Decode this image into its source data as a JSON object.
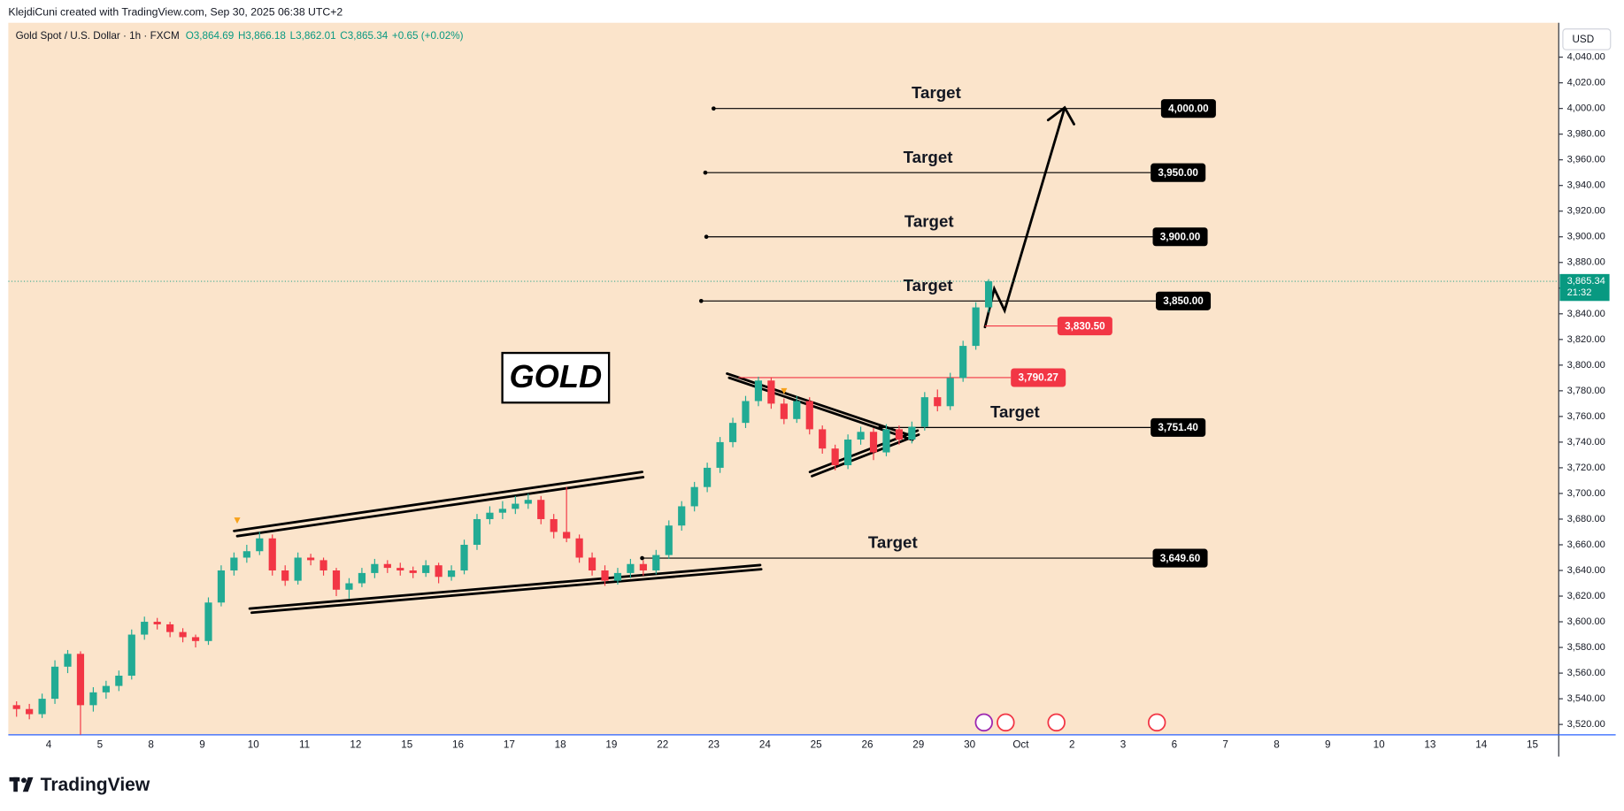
{
  "top_bar": "KlejdiCuni created with TradingView.com, Sep 30, 2025 06:38 UTC+2",
  "footer_brand": "TradingView",
  "chart_data": {
    "type": "candlestick",
    "symbol": "Gold Spot / U.S. Dollar · 1h · FXCM",
    "ohlc_text": [
      "O3,864.69",
      "H3,866.18",
      "L3,862.01",
      "C3,865.34",
      "+0.65 (+0.02%)"
    ],
    "currency": "USD",
    "title": "GOLD",
    "up_color": "#22ab94",
    "down_color": "#f23645",
    "categories": [
      "4",
      "5",
      "8",
      "9",
      "10",
      "11",
      "12",
      "15",
      "16",
      "17",
      "18",
      "19",
      "22",
      "23",
      "24",
      "25",
      "26",
      "29",
      "30",
      "Oct",
      "2",
      "3",
      "6",
      "7",
      "8",
      "9",
      "10",
      "13",
      "14",
      "15"
    ],
    "candles": [
      [
        3535,
        3538,
        3526,
        3532
      ],
      [
        3532,
        3536,
        3524,
        3528
      ],
      [
        3528,
        3544,
        3525,
        3540
      ],
      [
        3540,
        3570,
        3536,
        3565
      ],
      [
        3565,
        3578,
        3560,
        3575
      ],
      [
        3575,
        3577,
        3512,
        3535
      ],
      [
        3535,
        3549,
        3530,
        3545
      ],
      [
        3545,
        3554,
        3540,
        3550
      ],
      [
        3550,
        3562,
        3546,
        3558
      ],
      [
        3558,
        3594,
        3555,
        3590
      ],
      [
        3590,
        3604,
        3586,
        3600
      ],
      [
        3600,
        3603,
        3594,
        3598
      ],
      [
        3598,
        3600,
        3588,
        3592
      ],
      [
        3592,
        3595,
        3584,
        3588
      ],
      [
        3588,
        3590,
        3580,
        3585
      ],
      [
        3585,
        3619,
        3582,
        3615
      ],
      [
        3615,
        3644,
        3612,
        3640
      ],
      [
        3640,
        3654,
        3636,
        3650
      ],
      [
        3650,
        3660,
        3646,
        3655
      ],
      [
        3655,
        3670,
        3652,
        3665
      ],
      [
        3665,
        3668,
        3636,
        3640
      ],
      [
        3640,
        3644,
        3628,
        3632
      ],
      [
        3632,
        3654,
        3629,
        3650
      ],
      [
        3650,
        3653,
        3644,
        3648
      ],
      [
        3648,
        3650,
        3636,
        3640
      ],
      [
        3640,
        3642,
        3620,
        3625
      ],
      [
        3625,
        3634,
        3618,
        3630
      ],
      [
        3630,
        3642,
        3627,
        3638
      ],
      [
        3638,
        3649,
        3634,
        3645
      ],
      [
        3645,
        3648,
        3638,
        3642
      ],
      [
        3642,
        3646,
        3636,
        3640
      ],
      [
        3640,
        3643,
        3634,
        3638
      ],
      [
        3638,
        3648,
        3635,
        3644
      ],
      [
        3644,
        3646,
        3630,
        3635
      ],
      [
        3635,
        3644,
        3632,
        3640
      ],
      [
        3640,
        3664,
        3637,
        3660
      ],
      [
        3660,
        3684,
        3656,
        3680
      ],
      [
        3680,
        3690,
        3676,
        3685
      ],
      [
        3685,
        3694,
        3680,
        3688
      ],
      [
        3688,
        3698,
        3684,
        3692
      ],
      [
        3692,
        3700,
        3688,
        3695
      ],
      [
        3695,
        3698,
        3676,
        3680
      ],
      [
        3680,
        3684,
        3665,
        3670
      ],
      [
        3670,
        3705,
        3662,
        3665
      ],
      [
        3665,
        3668,
        3646,
        3650
      ],
      [
        3650,
        3654,
        3636,
        3640
      ],
      [
        3640,
        3644,
        3628,
        3632
      ],
      [
        3632,
        3642,
        3629,
        3638
      ],
      [
        3638,
        3649,
        3634,
        3645
      ],
      [
        3645,
        3648,
        3636,
        3640
      ],
      [
        3640,
        3656,
        3637,
        3652
      ],
      [
        3652,
        3679,
        3649,
        3675
      ],
      [
        3675,
        3694,
        3671,
        3690
      ],
      [
        3690,
        3709,
        3686,
        3705
      ],
      [
        3705,
        3724,
        3701,
        3720
      ],
      [
        3720,
        3744,
        3716,
        3740
      ],
      [
        3740,
        3759,
        3736,
        3755
      ],
      [
        3755,
        3776,
        3751,
        3772
      ],
      [
        3772,
        3791,
        3768,
        3788
      ],
      [
        3788,
        3790,
        3766,
        3770
      ],
      [
        3770,
        3774,
        3754,
        3758
      ],
      [
        3758,
        3776,
        3755,
        3772
      ],
      [
        3772,
        3775,
        3746,
        3750
      ],
      [
        3750,
        3753,
        3731,
        3735
      ],
      [
        3735,
        3738,
        3718,
        3722
      ],
      [
        3722,
        3746,
        3719,
        3742
      ],
      [
        3742,
        3752,
        3738,
        3748
      ],
      [
        3748,
        3751,
        3726,
        3732
      ],
      [
        3732,
        3754,
        3729,
        3750
      ],
      [
        3750,
        3753,
        3738,
        3742
      ],
      [
        3742,
        3756,
        3739,
        3752
      ],
      [
        3752,
        3779,
        3749,
        3775
      ],
      [
        3775,
        3781,
        3764,
        3768
      ],
      [
        3768,
        3794,
        3765,
        3790
      ],
      [
        3790,
        3819,
        3787,
        3815
      ],
      [
        3815,
        3849,
        3812,
        3845
      ],
      [
        3845,
        3867,
        3841,
        3865.34
      ]
    ],
    "ylim": [
      3511.9,
      4066.8
    ],
    "yticks": [
      {
        "value": 3520,
        "label": "3,520.00"
      },
      {
        "value": 3540,
        "label": "3,540.00"
      },
      {
        "value": 3560,
        "label": "3,560.00"
      },
      {
        "value": 3580,
        "label": "3,580.00"
      },
      {
        "value": 3600,
        "label": "3,600.00"
      },
      {
        "value": 3620,
        "label": "3,620.00"
      },
      {
        "value": 3640,
        "label": "3,640.00"
      },
      {
        "value": 3660,
        "label": "3,660.00"
      },
      {
        "value": 3680,
        "label": "3,680.00"
      },
      {
        "value": 3700,
        "label": "3,700.00"
      },
      {
        "value": 3720,
        "label": "3,720.00"
      },
      {
        "value": 3740,
        "label": "3,740.00"
      },
      {
        "value": 3760,
        "label": "3,760.00"
      },
      {
        "value": 3780,
        "label": "3,780.00"
      },
      {
        "value": 3800,
        "label": "3,800.00"
      },
      {
        "value": 3820,
        "label": "3,820.00"
      },
      {
        "value": 3840,
        "label": "3,840.00"
      },
      {
        "value": 3860,
        "label": "3,860.00"
      },
      {
        "value": 3880,
        "label": "3,880.00"
      },
      {
        "value": 3900,
        "label": "3,900.00"
      },
      {
        "value": 3920,
        "label": "3,920.00"
      },
      {
        "value": 3940,
        "label": "3,940.00"
      },
      {
        "value": 3960,
        "label": "3,960.00"
      },
      {
        "value": 3980,
        "label": "3,980.00"
      },
      {
        "value": 4000,
        "label": "4,000.00"
      },
      {
        "value": 4020,
        "label": "4,020.00"
      },
      {
        "value": 4040,
        "label": "4,040.00"
      }
    ],
    "last_price": {
      "value": 3865.34,
      "label": "3,865.34",
      "countdown": "21:32",
      "color": "#089981"
    },
    "levels": [
      {
        "value": 4000,
        "label": "4,000.00",
        "text": "Target",
        "color": "#000000"
      },
      {
        "value": 3950,
        "label": "3,950.00",
        "text": "Target",
        "color": "#000000"
      },
      {
        "value": 3900,
        "label": "3,900.00",
        "text": "Target",
        "color": "#000000"
      },
      {
        "value": 3850,
        "label": "3,850.00",
        "text": "Target",
        "color": "#000000"
      },
      {
        "value": 3830.5,
        "label": "3,830.50",
        "color": "#f23645"
      },
      {
        "value": 3790.27,
        "label": "3,790.27",
        "color": "#f23645"
      },
      {
        "value": 3751.4,
        "label": "3,751.40",
        "text": "Target",
        "color": "#000000"
      },
      {
        "value": 3649.6,
        "label": "3,649.60",
        "text": "Target",
        "color": "#000000"
      }
    ]
  }
}
